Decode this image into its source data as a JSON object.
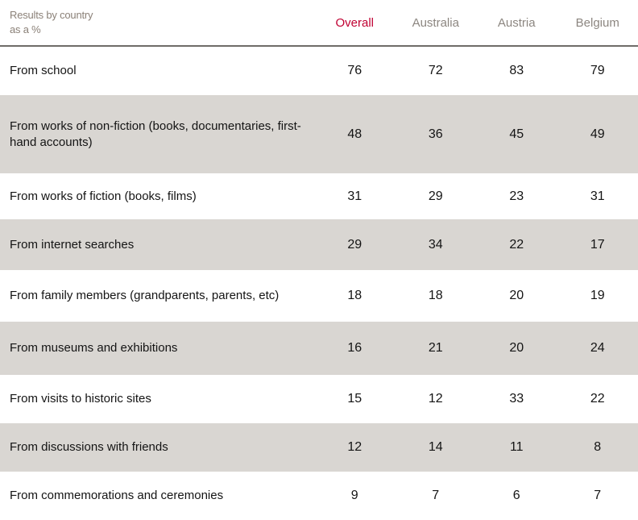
{
  "header": {
    "line1": "Results by country",
    "line2": "as a %"
  },
  "colors": {
    "highlight_column": "#C00032",
    "muted_header": "#8C8680",
    "corner_text": "#8B8178",
    "alt_row_background": "#D9D6D2",
    "divider": "#6F6C68"
  },
  "chart_data": {
    "type": "table",
    "title": "Results by country as a %",
    "columns": [
      "Overall",
      "Australia",
      "Austria",
      "Belgium"
    ],
    "highlighted_column": "Overall",
    "row_labels": [
      "From school",
      "From works of non-fiction (books, documentaries, first-hand accounts)",
      "From works of fiction (books, films)",
      "From internet searches",
      "From family members (grandparents, parents, etc)",
      "From museums and exhibitions",
      "From visits to historic sites",
      "From discussions with friends",
      "From commemorations and ceremonies"
    ],
    "values": [
      [
        76,
        72,
        83,
        79
      ],
      [
        48,
        36,
        45,
        49
      ],
      [
        31,
        29,
        23,
        31
      ],
      [
        29,
        34,
        22,
        17
      ],
      [
        18,
        18,
        20,
        19
      ],
      [
        16,
        21,
        20,
        24
      ],
      [
        15,
        12,
        33,
        22
      ],
      [
        12,
        14,
        11,
        8
      ],
      [
        9,
        7,
        6,
        7
      ]
    ]
  }
}
